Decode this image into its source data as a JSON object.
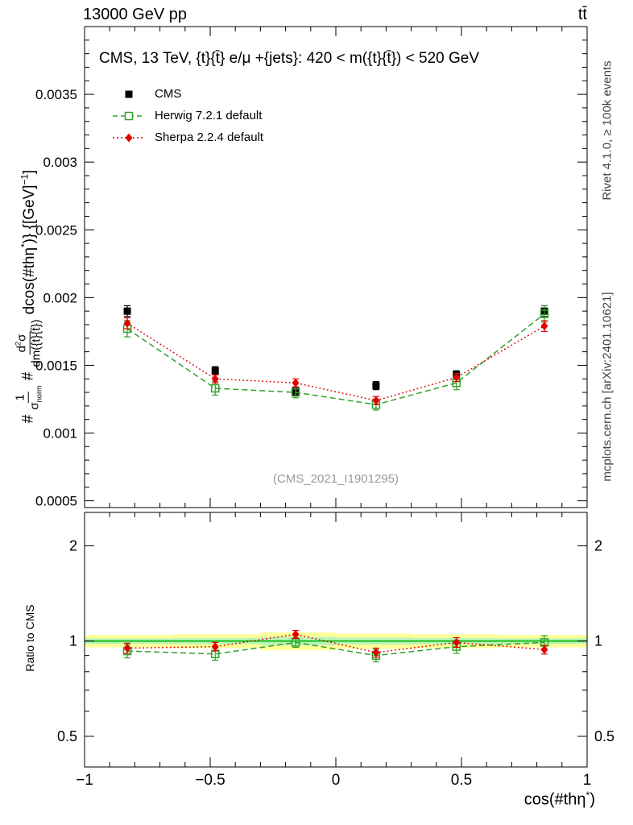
{
  "header": {
    "left": "13000 GeV pp",
    "right": "tt̄"
  },
  "right_margin": {
    "top": "Rivet 4.1.0, ≥ 100k events",
    "bottom": "mcplots.cern.ch [arXiv:2401.10621]"
  },
  "main_panel": {
    "title": "CMS, 13 TeV, {t}{t̄} e/μ +{jets}: 420 < m({t}{t̄}) < 520 GeV",
    "watermark": "(CMS_2021_I1901295)",
    "ylabel": {
      "t1": "#",
      "num1": "1",
      "den1_main": "σ",
      "den1_sub": "norm",
      "t2": "#",
      "num2_a": "d",
      "num2_sup": "2",
      "num2_b": "σ",
      "den2": "dm({t}{t̄})",
      "tail_a": "dcos(#thη",
      "tail_sup": "*",
      "tail_b": ")} {[GeV]",
      "tail_sup2": "−1",
      "tail_c": "]"
    }
  },
  "ratio_panel": {
    "ylabel": "Ratio to CMS"
  },
  "xlabel": {
    "base": "cos(#thη",
    "sup": "*",
    "close": ")"
  },
  "chart_data": {
    "type": "line",
    "title": "CMS, 13 TeV, {t}{t̄} e/μ +{jets}: 420 < m({t}{t̄}) < 520 GeV",
    "xlabel": "cos(#thη*)",
    "ylabel_main": "1/σ_norm d²σ/dm({t}{t̄}) dcos(#thη*) [GeV−1]",
    "ylabel_ratio": "Ratio to CMS",
    "legend_position": "top-left",
    "grid": false,
    "xlim": [
      -1,
      1
    ],
    "xticks": [
      -1,
      -0.5,
      0,
      0.5,
      1
    ],
    "xtick_labels": [
      "−1",
      "−0.5",
      "0",
      "0.5",
      "1"
    ],
    "x": [
      -0.83,
      -0.48,
      -0.16,
      0.16,
      0.48,
      0.83
    ],
    "bin_edges": [
      -1,
      -0.65,
      -0.3,
      0,
      0.3,
      0.65,
      1
    ],
    "main": {
      "scale": "linear",
      "ylim": [
        0.00045,
        0.004
      ],
      "yticks": [
        0.0005,
        0.001,
        0.0015,
        0.002,
        0.0025,
        0.003,
        0.0035
      ],
      "ytick_labels": [
        "0.0005",
        "0.001",
        "0.0015",
        "0.002",
        "0.0025",
        "0.003",
        "0.0035"
      ]
    },
    "ratio": {
      "scale": "log",
      "ylim": [
        0.4,
        2.55
      ],
      "yticks": [
        0.5,
        1,
        2
      ],
      "ytick_labels": [
        "0.5",
        "1",
        "2"
      ],
      "minor_ticks": [
        0.4,
        0.6,
        0.7,
        0.8,
        0.9
      ],
      "reference_line": 1,
      "line_color": "#00b400",
      "band_yellow_color": "#ffff99",
      "band_green_color": "#b8f5b8",
      "band_yellow": [
        0.045,
        0.05,
        0.065,
        0.055,
        0.05,
        0.045
      ],
      "band_green": [
        0.02,
        0.022,
        0.03,
        0.025,
        0.022,
        0.02
      ]
    },
    "series": [
      {
        "label": "CMS",
        "color": "#000000",
        "marker": "square-filled",
        "line": "none",
        "values": [
          0.0019,
          0.00146,
          0.00131,
          0.00135,
          0.00143,
          0.0019
        ],
        "errors": [
          4e-05,
          3e-05,
          3e-05,
          3e-05,
          3e-05,
          4e-05
        ]
      },
      {
        "label": "Herwig 7.2.1 default",
        "color": "#33a02c",
        "marker": "square-open",
        "line": "dashed",
        "values": [
          0.00177,
          0.00133,
          0.0013,
          0.00121,
          0.00137,
          0.00188
        ],
        "errors": [
          6e-05,
          5e-05,
          4e-05,
          4e-05,
          5e-05,
          6e-05
        ],
        "ratio": [
          0.93,
          0.91,
          0.99,
          0.9,
          0.96,
          0.99
        ],
        "ratio_errors": [
          0.045,
          0.04,
          0.035,
          0.04,
          0.045,
          0.05
        ]
      },
      {
        "label": "Sherpa 2.2.4 default",
        "color": "#e10000",
        "marker": "diamond-filled",
        "line": "dotted",
        "values": [
          0.00181,
          0.0014,
          0.00137,
          0.00124,
          0.00141,
          0.00179
        ],
        "errors": [
          4e-05,
          3e-05,
          3e-05,
          3e-05,
          3e-05,
          4e-05
        ],
        "ratio": [
          0.95,
          0.96,
          1.05,
          0.92,
          0.99,
          0.94
        ],
        "ratio_errors": [
          0.035,
          0.03,
          0.03,
          0.03,
          0.035,
          0.03
        ]
      }
    ]
  }
}
